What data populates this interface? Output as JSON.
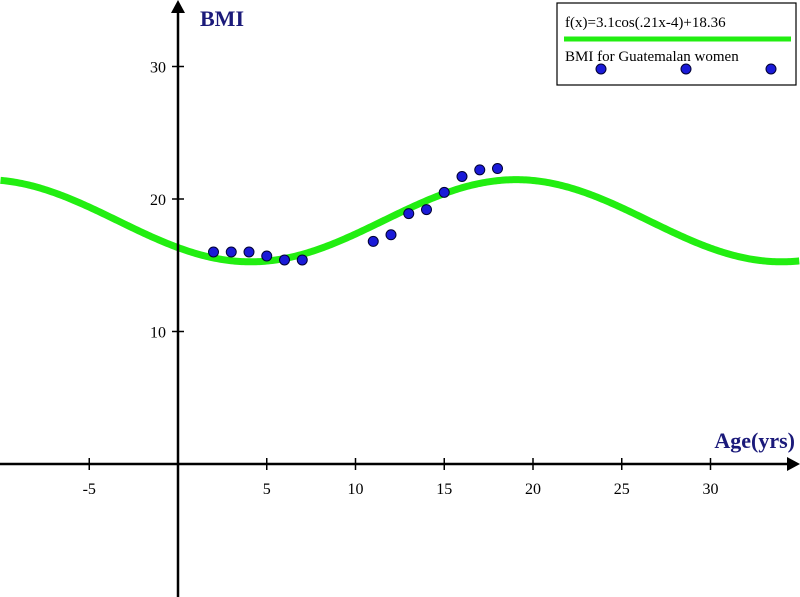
{
  "chart_data": {
    "type": "scatter",
    "xlabel": "Age(yrs)",
    "ylabel": "BMI",
    "xlim": [
      -10,
      35
    ],
    "ylim": [
      -10,
      35
    ],
    "x_ticks": [
      -5,
      5,
      10,
      15,
      20,
      25,
      30
    ],
    "y_ticks": [
      10,
      20,
      30
    ],
    "grid": false,
    "legend_position": "top-right",
    "colors": {
      "curve": "#22ee11",
      "points": "#1a1ad8",
      "point_edge": "#000033",
      "axis": "#000000",
      "axis_title": "#1b1a7a"
    },
    "function": {
      "name": "f(x)=3.1cos(.21x-4)+18.36",
      "amplitude": 3.1,
      "frequency": 0.21,
      "phase": -4,
      "offset": 18.36
    },
    "series": [
      {
        "name": "BMI for Guatemalan women",
        "x": [
          2,
          3,
          4,
          5,
          6,
          7,
          11,
          12,
          13,
          14,
          15,
          16,
          17,
          18
        ],
        "y": [
          16.0,
          16.0,
          16.0,
          15.7,
          15.4,
          15.4,
          16.8,
          17.3,
          18.9,
          19.2,
          20.5,
          21.7,
          22.2,
          22.3
        ]
      }
    ]
  }
}
